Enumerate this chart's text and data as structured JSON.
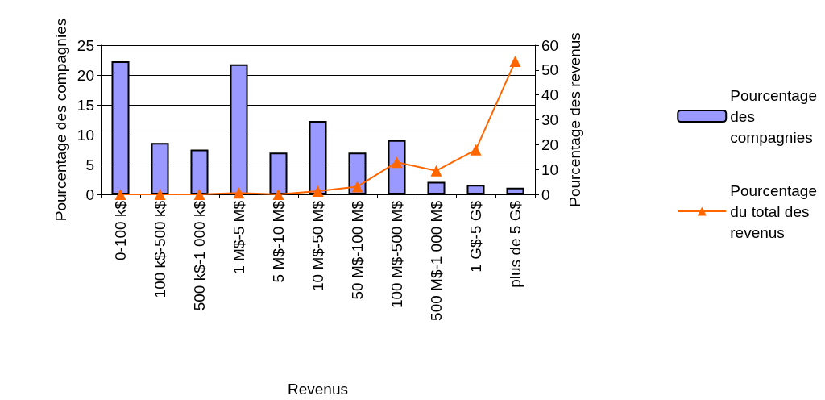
{
  "chart_data": {
    "type": "bar",
    "xlabel": "Revenus",
    "ylabel": "Pourcentage des compagnies",
    "y2label": "Pourcentage des revenus",
    "categories": [
      "0-100 k$",
      "100 k$-500 k$",
      "500 k$-1 000 k$",
      "1 M$-5 M$",
      "5 M$-10 M$",
      "10 M$-50 M$",
      "50 M$-100 M$",
      "100 M$-500 M$",
      "500 M$-1 000 M$",
      "1 G$-5 G$",
      "plus de 5 G$"
    ],
    "series": [
      {
        "name": "Pourcentage des compagnies",
        "color": "#9999ff",
        "values": [
          22.3,
          8.6,
          7.5,
          21.8,
          7.0,
          12.3,
          7.0,
          9.1,
          2.1,
          1.6,
          1.1
        ]
      },
      {
        "name": "Pourcentage du total des revenus",
        "type": "line",
        "axis": "y2",
        "color": "#ff6600",
        "marker": "triangle",
        "values": [
          0,
          0,
          0,
          0.6,
          0,
          1.3,
          3.1,
          12.9,
          9.5,
          17.9,
          53.5
        ]
      }
    ],
    "ylim": [
      0,
      25
    ],
    "yticks": [
      0,
      5,
      10,
      15,
      20,
      25
    ],
    "y2lim": [
      0,
      60
    ],
    "y2ticks": [
      0,
      10,
      20,
      30,
      40,
      50,
      60
    ],
    "grid": "y",
    "legend": "right"
  }
}
